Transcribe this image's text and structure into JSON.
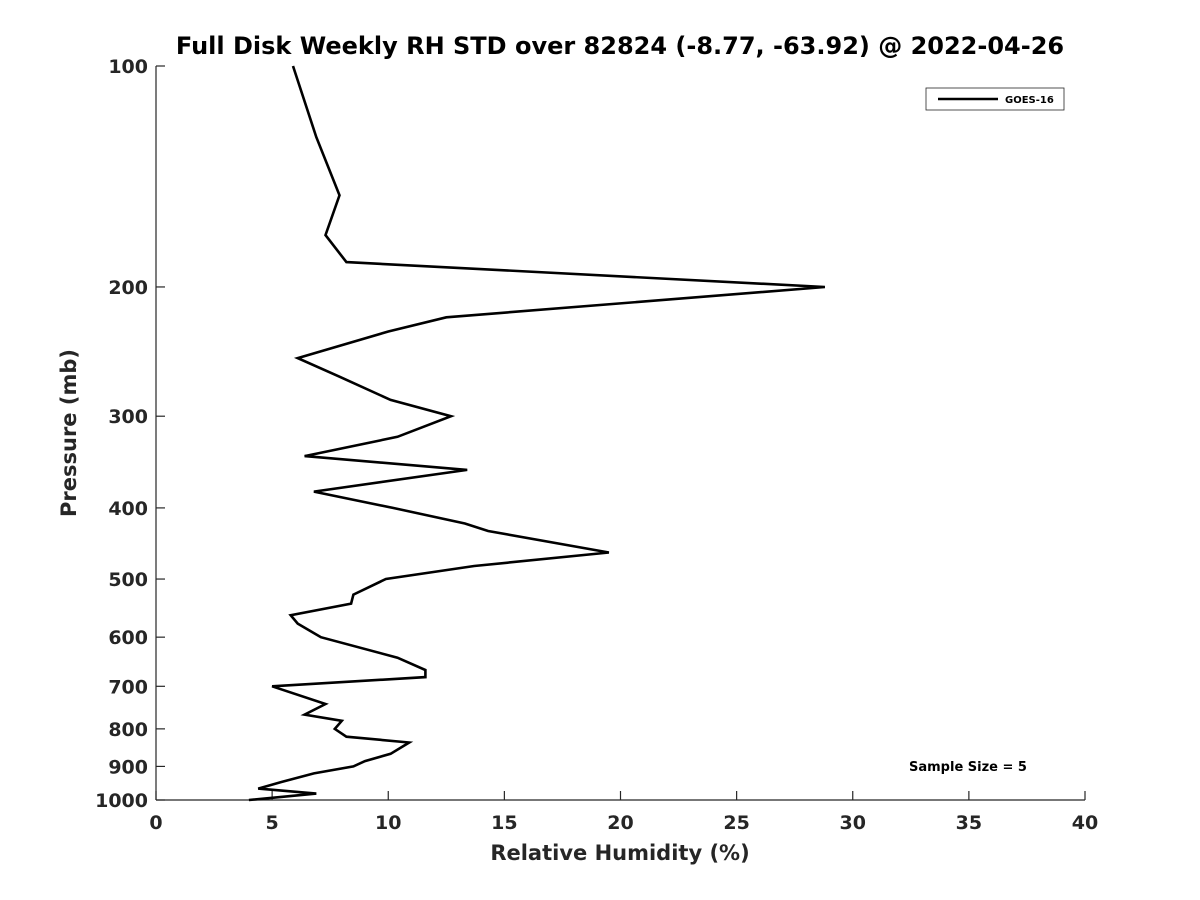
{
  "chart_data": {
    "type": "line",
    "title": "Full Disk Weekly RH STD over 82824 (-8.77, -63.92) @ 2022-04-26",
    "xlabel": "Relative Humidity (%)",
    "ylabel": "Pressure (mb)",
    "xlim": [
      0,
      40
    ],
    "ylim": [
      100,
      1000
    ],
    "yscale": "log",
    "y_reversed": true,
    "x_ticks": [
      0,
      5,
      10,
      15,
      20,
      25,
      30,
      35,
      40
    ],
    "y_ticks": [
      100,
      200,
      300,
      400,
      500,
      600,
      700,
      800,
      900,
      1000
    ],
    "grid": false,
    "legend_position": "top-right",
    "annotation": "Sample Size = 5",
    "series": [
      {
        "name": "GOES-16",
        "color": "#000000",
        "points": [
          [
            5.9,
            100
          ],
          [
            6.9,
            125
          ],
          [
            7.9,
            150
          ],
          [
            7.3,
            170
          ],
          [
            8.2,
            185
          ],
          [
            28.8,
            200
          ],
          [
            12.5,
            220
          ],
          [
            10.0,
            230
          ],
          [
            6.1,
            250
          ],
          [
            7.9,
            265
          ],
          [
            10.1,
            285
          ],
          [
            12.7,
            300
          ],
          [
            10.4,
            320
          ],
          [
            6.4,
            340
          ],
          [
            13.4,
            355
          ],
          [
            6.8,
            380
          ],
          [
            10.2,
            400
          ],
          [
            13.3,
            420
          ],
          [
            14.3,
            430
          ],
          [
            19.5,
            460
          ],
          [
            13.7,
            480
          ],
          [
            9.9,
            500
          ],
          [
            8.5,
            525
          ],
          [
            8.4,
            540
          ],
          [
            5.8,
            560
          ],
          [
            6.1,
            575
          ],
          [
            7.1,
            600
          ],
          [
            10.4,
            640
          ],
          [
            11.6,
            665
          ],
          [
            11.6,
            680
          ],
          [
            5.0,
            700
          ],
          [
            7.3,
            740
          ],
          [
            6.4,
            765
          ],
          [
            8.0,
            780
          ],
          [
            7.7,
            800
          ],
          [
            8.2,
            820
          ],
          [
            10.9,
            835
          ],
          [
            10.1,
            865
          ],
          [
            9.0,
            885
          ],
          [
            8.5,
            900
          ],
          [
            6.8,
            920
          ],
          [
            5.4,
            945
          ],
          [
            4.4,
            965
          ],
          [
            6.9,
            980
          ],
          [
            4.0,
            1000
          ]
        ]
      }
    ]
  }
}
